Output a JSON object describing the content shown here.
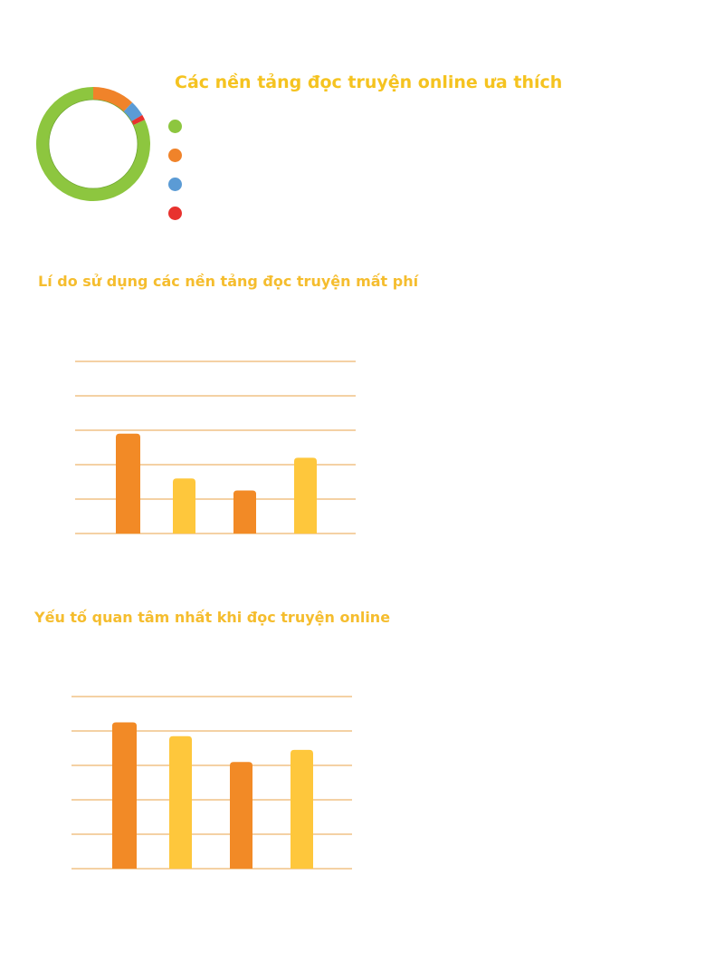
{
  "theme": {
    "title_color_large": "#f5c320",
    "title_color_small": "#f5bd2e",
    "grid_color": "#e8a34a"
  },
  "chart_data": [
    {
      "type": "pie",
      "variant": "donut",
      "title": "Các nền tảng đọc truyện online ưa thích",
      "slices": [
        {
          "label": "",
          "value": 82,
          "color": "#8dc63f"
        },
        {
          "label": "",
          "value": 12,
          "color": "#f0832a"
        },
        {
          "label": "",
          "value": 4.5,
          "color": "#5b9bd5"
        },
        {
          "label": "",
          "value": 1.5,
          "color": "#e8322e"
        }
      ],
      "legend": "right"
    },
    {
      "type": "bar",
      "title": "Lí do sử dụng các nền tảng đọc truyện mất phí",
      "categories": [
        "",
        "",
        "",
        ""
      ],
      "values": [
        58,
        32,
        25,
        44
      ],
      "colors": [
        "#f28a26",
        "#fec73c",
        "#f28a26",
        "#fec73c"
      ],
      "ylim": [
        0,
        100
      ],
      "gridlines": 5,
      "grid": true
    },
    {
      "type": "bar",
      "title": "Yếu tố quan tâm nhất khi đọc truyện online",
      "categories": [
        "",
        "",
        "",
        ""
      ],
      "values": [
        85,
        77,
        62,
        69
      ],
      "colors": [
        "#f28a26",
        "#fec73c",
        "#f28a26",
        "#fec73c"
      ],
      "ylim": [
        0,
        100
      ],
      "gridlines": 5,
      "grid": true
    }
  ]
}
